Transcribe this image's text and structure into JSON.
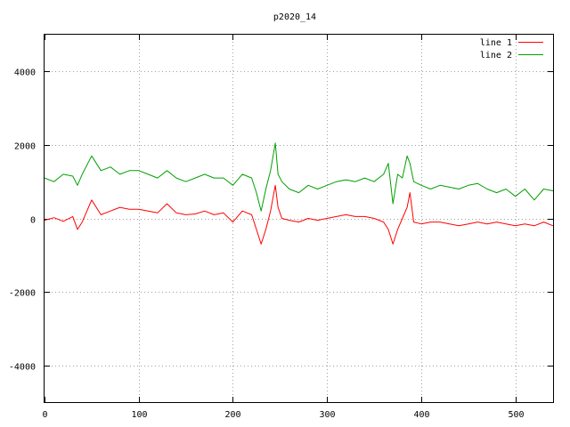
{
  "chart_data": {
    "type": "line",
    "title": "p2020_14",
    "xlabel": "",
    "ylabel": "",
    "xlim": [
      0,
      540
    ],
    "ylim": [
      -5000,
      5000
    ],
    "x_ticks": [
      0,
      100,
      200,
      300,
      400,
      500
    ],
    "y_ticks": [
      -4000,
      -2000,
      0,
      2000,
      4000
    ],
    "grid": true,
    "legend_position": "top-right",
    "series": [
      {
        "name": "line 1",
        "color": "#ff0000",
        "x": [
          0,
          10,
          20,
          30,
          35,
          40,
          50,
          60,
          70,
          80,
          90,
          100,
          110,
          120,
          130,
          140,
          150,
          160,
          170,
          180,
          190,
          200,
          210,
          220,
          225,
          230,
          235,
          240,
          245,
          248,
          252,
          260,
          270,
          280,
          290,
          300,
          310,
          320,
          330,
          340,
          350,
          360,
          365,
          370,
          375,
          380,
          385,
          388,
          392,
          400,
          410,
          420,
          430,
          440,
          450,
          460,
          470,
          480,
          490,
          500,
          510,
          520,
          530,
          540
        ],
        "y": [
          -50,
          20,
          -80,
          50,
          -300,
          -100,
          500,
          100,
          200,
          300,
          250,
          250,
          200,
          150,
          400,
          150,
          100,
          120,
          200,
          100,
          150,
          -100,
          200,
          100,
          -300,
          -700,
          -300,
          200,
          900,
          300,
          0,
          -50,
          -100,
          0,
          -50,
          0,
          50,
          100,
          50,
          50,
          0,
          -100,
          -300,
          -700,
          -300,
          0,
          300,
          700,
          -100,
          -150,
          -100,
          -100,
          -150,
          -200,
          -150,
          -100,
          -150,
          -100,
          -150,
          -200,
          -150,
          -200,
          -100,
          -200
        ]
      },
      {
        "name": "line 2",
        "color": "#00a000",
        "x": [
          0,
          10,
          20,
          30,
          35,
          40,
          50,
          60,
          70,
          80,
          90,
          100,
          110,
          120,
          130,
          140,
          150,
          160,
          170,
          180,
          190,
          200,
          210,
          220,
          225,
          230,
          235,
          240,
          245,
          248,
          252,
          260,
          270,
          280,
          290,
          300,
          310,
          320,
          330,
          340,
          350,
          360,
          365,
          370,
          375,
          380,
          385,
          388,
          392,
          400,
          410,
          420,
          430,
          440,
          450,
          460,
          470,
          480,
          490,
          500,
          510,
          520,
          530,
          540
        ],
        "y": [
          1100,
          1000,
          1200,
          1150,
          900,
          1200,
          1700,
          1300,
          1400,
          1200,
          1300,
          1300,
          1200,
          1100,
          1300,
          1100,
          1000,
          1100,
          1200,
          1100,
          1100,
          900,
          1200,
          1100,
          700,
          200,
          800,
          1300,
          2050,
          1200,
          1000,
          800,
          700,
          900,
          800,
          900,
          1000,
          1050,
          1000,
          1100,
          1000,
          1200,
          1500,
          400,
          1200,
          1100,
          1700,
          1500,
          1000,
          900,
          800,
          900,
          850,
          800,
          900,
          950,
          800,
          700,
          800,
          600,
          800,
          500,
          800,
          750
        ]
      }
    ]
  }
}
